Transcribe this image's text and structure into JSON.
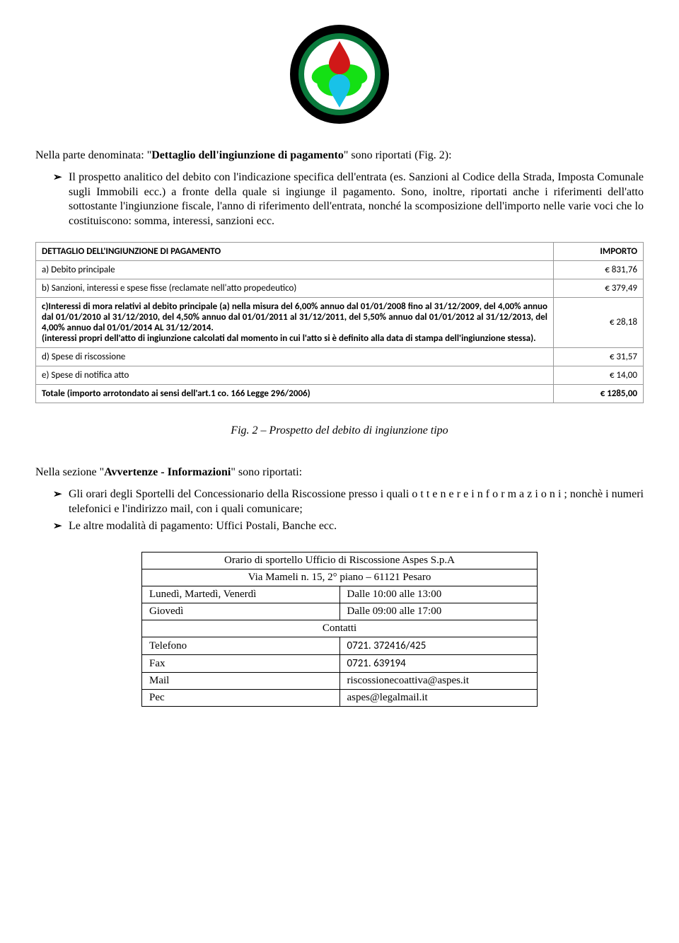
{
  "logo": {
    "outer_ring_color": "#000000",
    "inner_ring_color": "#0a7a3c",
    "background_color": "#ffffff",
    "top_drop_color": "#d01818",
    "bottom_drop_color": "#18c2e8",
    "leaf_color": "#14e014"
  },
  "intro_para": "Nella parte denominata: \"Dettaglio dell'ingiunzione di pagamento\" sono riportati (Fig. 2):",
  "main_bullet": "Il prospetto analitico del debito con l'indicazione specifica dell'entrata (es. Sanzioni al Codice della Strada, Imposta Comunale sugli Immobili ecc.) a fronte della quale si ingiunge il pagamento. Sono, inoltre, riportati anche i riferimenti dell'atto sottostante l'ingiunzione fiscale, l'anno di riferimento dell'entrata, nonché la scomposizione dell'importo nelle varie voci che lo costituiscono: somma, interessi, sanzioni ecc.",
  "detail_table": {
    "header_desc": "DETTAGLIO DELL'INGIUNZIONE DI PAGAMENTO",
    "header_imp": "IMPORTO",
    "rows": [
      {
        "desc": "a) Debito principale",
        "amount": "€  831,76",
        "bold": false
      },
      {
        "desc": "b) Sanzioni, interessi e spese fisse (reclamate nell'atto propedeutico)",
        "amount": "€  379,49",
        "bold": false
      },
      {
        "desc": "c)Interessi di mora relativi al debito principale (a) nella misura del 6,00% annuo dal 01/01/2008 fino al 31/12/2009, del 4,00% annuo dal 01/01/2010 al 31/12/2010, del 4,50% annuo dal 01/01/2011 al 31/12/2011, del 5,50% annuo dal 01/01/2012 al 31/12/2013, del 4,00% annuo dal 01/01/2014 AL 31/12/2014.\n(interessi propri dell'atto di ingiunzione calcolati dal momento in cui l'atto si è definito alla data di stampa dell'ingiunzione stessa).",
        "amount": "€  28,18",
        "bold": true
      },
      {
        "desc": "d) Spese di riscossione",
        "amount": "€  31,57",
        "bold": false
      },
      {
        "desc": "e) Spese di notifica atto",
        "amount": "€  14,00",
        "bold": false
      }
    ],
    "total_desc": "Totale (importo arrotondato ai sensi dell'art.1 co. 166 Legge 296/2006)",
    "total_amount": "€  1285,00"
  },
  "caption": "Fig. 2 – Prospetto del debito di ingiunzione tipo",
  "section2_intro": "Nella sezione \"Avvertenze - Informazioni\" sono riportati:",
  "section2_bullets": [
    "Gli orari degli Sportelli del Concessionario della Riscossione presso i quali o t t e n e r e i n f o r m a z i o n i ; nonchè i numeri telefonici e l'indirizzo mail, con i quali comunicare;",
    "Le altre modalità di pagamento: Uffici Postali, Banche ecc."
  ],
  "schedule": {
    "title": "Orario di sportello Ufficio di Riscossione Aspes S.p.A",
    "address": "Via Mameli n. 15, 2° piano – 61121 Pesaro",
    "rows": [
      {
        "left": "Lunedì, Martedì, Venerdì",
        "right": "Dalle 10:00 alle 13:00"
      },
      {
        "left": "Giovedì",
        "right": "Dalle 09:00 alle 17:00"
      }
    ],
    "contacts_header": "Contatti",
    "contacts": [
      {
        "left": "Telefono",
        "right": "0721. 372416/425",
        "sans": true
      },
      {
        "left": "Fax",
        "right": "0721. 639194",
        "sans": true
      },
      {
        "left": "Mail",
        "right": "riscossionecoattiva@aspes.it",
        "sans": false
      },
      {
        "left": "Pec",
        "right": "aspes@legalmail.it",
        "sans": false
      }
    ]
  }
}
